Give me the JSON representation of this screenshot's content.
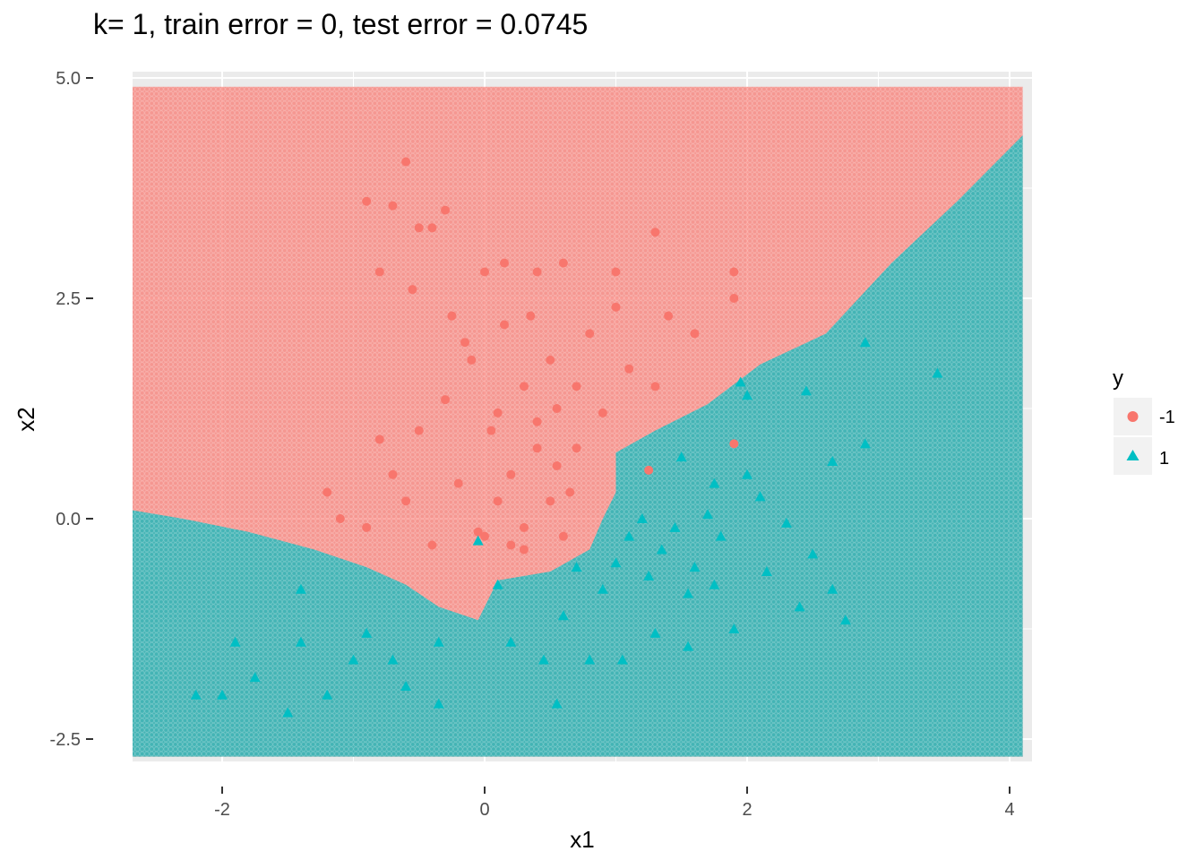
{
  "chart_data": {
    "type": "scatter",
    "title": "k= 1, train error = 0, test error = 0.0745",
    "xlabel": "x1",
    "ylabel": "x2",
    "xlim": [
      -2.75,
      4.1
    ],
    "ylim": [
      -2.75,
      5.0
    ],
    "x_ticks": [
      {
        "value": -2,
        "label": "-2"
      },
      {
        "value": 0,
        "label": "0"
      },
      {
        "value": 2,
        "label": "2"
      },
      {
        "value": 4,
        "label": "4"
      }
    ],
    "y_ticks": [
      {
        "value": -2.5,
        "label": "-2.5"
      },
      {
        "value": 0,
        "label": "0.0"
      },
      {
        "value": 2.5,
        "label": "2.5"
      },
      {
        "value": 5,
        "label": "5.0"
      }
    ],
    "grid": true,
    "legend": {
      "title": "y",
      "placement": "right",
      "entries": [
        {
          "label": "-1",
          "shape": "circle",
          "color": "#F8766D"
        },
        {
          "label": "1",
          "shape": "triangle",
          "color": "#00BFC4"
        }
      ]
    },
    "colors": {
      "class_neg": "#F8766D",
      "class_pos": "#00BFC4",
      "panel_bg": "#EBEBEB",
      "grid": "#FFFFFF"
    },
    "decision_grid": {
      "description": "Background tiles show the k=1 nearest-neighbour predicted class over x1 in [-2.7, 4.1], x2 in [-2.7, 4.9]",
      "x_range": [
        -2.7,
        4.1
      ],
      "y_range": [
        -2.7,
        4.9
      ],
      "boundary_points": [
        [
          -2.7,
          0.1
        ],
        [
          -2.3,
          0.0
        ],
        [
          -1.8,
          -0.15
        ],
        [
          -1.3,
          -0.35
        ],
        [
          -0.9,
          -0.55
        ],
        [
          -0.6,
          -0.75
        ],
        [
          -0.35,
          -1.0
        ],
        [
          -0.05,
          -1.15
        ],
        [
          0.1,
          -0.7
        ],
        [
          0.5,
          -0.6
        ],
        [
          0.8,
          -0.35
        ],
        [
          0.9,
          0.0
        ],
        [
          1.0,
          0.3
        ],
        [
          1.0,
          0.75
        ],
        [
          1.3,
          1.0
        ],
        [
          1.7,
          1.3
        ],
        [
          2.1,
          1.75
        ],
        [
          2.6,
          2.1
        ],
        [
          3.1,
          2.9
        ],
        [
          3.6,
          3.6
        ],
        [
          4.1,
          4.35
        ]
      ]
    },
    "series": [
      {
        "name": "-1",
        "shape": "circle",
        "points": [
          [
            -0.9,
            3.6
          ],
          [
            -0.8,
            2.8
          ],
          [
            -0.7,
            3.55
          ],
          [
            -0.6,
            4.05
          ],
          [
            -0.5,
            3.3
          ],
          [
            -0.4,
            3.3
          ],
          [
            -0.3,
            3.5
          ],
          [
            -0.55,
            2.6
          ],
          [
            -0.25,
            2.3
          ],
          [
            -0.15,
            2.0
          ],
          [
            0.0,
            2.8
          ],
          [
            0.15,
            2.9
          ],
          [
            0.4,
            2.8
          ],
          [
            0.6,
            2.9
          ],
          [
            1.0,
            2.8
          ],
          [
            1.3,
            3.25
          ],
          [
            1.9,
            2.8
          ],
          [
            1.9,
            2.5
          ],
          [
            0.5,
            1.8
          ],
          [
            0.7,
            1.5
          ],
          [
            0.3,
            1.5
          ],
          [
            0.1,
            1.2
          ],
          [
            -0.3,
            1.35
          ],
          [
            -0.5,
            1.0
          ],
          [
            -0.8,
            0.9
          ],
          [
            -1.1,
            0.0
          ],
          [
            -1.2,
            0.3
          ],
          [
            -0.9,
            -0.1
          ],
          [
            0.2,
            0.5
          ],
          [
            0.4,
            0.8
          ],
          [
            0.9,
            1.2
          ],
          [
            1.1,
            1.7
          ],
          [
            1.4,
            2.3
          ],
          [
            1.6,
            2.1
          ],
          [
            -0.2,
            0.4
          ],
          [
            0.0,
            -0.2
          ],
          [
            0.2,
            -0.3
          ],
          [
            0.5,
            0.2
          ],
          [
            0.7,
            0.8
          ],
          [
            -0.4,
            -0.3
          ],
          [
            0.3,
            -0.1
          ],
          [
            0.6,
            -0.2
          ],
          [
            1.25,
            0.55
          ],
          [
            1.9,
            0.85
          ],
          [
            0.8,
            2.1
          ],
          [
            -0.1,
            1.8
          ],
          [
            0.15,
            2.2
          ],
          [
            1.0,
            2.4
          ],
          [
            1.3,
            1.5
          ],
          [
            -0.7,
            0.5
          ],
          [
            0.05,
            1.0
          ],
          [
            0.4,
            1.1
          ],
          [
            0.65,
            0.3
          ],
          [
            0.55,
            1.25
          ],
          [
            0.35,
            2.3
          ],
          [
            0.55,
            0.6
          ],
          [
            0.3,
            -0.35
          ],
          [
            0.1,
            0.2
          ],
          [
            -0.6,
            0.2
          ],
          [
            -0.05,
            -0.15
          ]
        ]
      },
      {
        "name": "1",
        "shape": "triangle",
        "points": [
          [
            -2.2,
            -2.0
          ],
          [
            -2.0,
            -2.0
          ],
          [
            -1.9,
            -1.4
          ],
          [
            -1.75,
            -1.8
          ],
          [
            -1.5,
            -2.2
          ],
          [
            -1.4,
            -1.4
          ],
          [
            -1.2,
            -2.0
          ],
          [
            -1.0,
            -1.6
          ],
          [
            -0.9,
            -1.3
          ],
          [
            -0.7,
            -1.6
          ],
          [
            -0.6,
            -1.9
          ],
          [
            -0.35,
            -2.1
          ],
          [
            -0.35,
            -1.4
          ],
          [
            -1.4,
            -0.8
          ],
          [
            0.2,
            -1.4
          ],
          [
            0.45,
            -1.6
          ],
          [
            0.6,
            -1.1
          ],
          [
            0.8,
            -1.6
          ],
          [
            1.05,
            -1.6
          ],
          [
            1.3,
            -1.3
          ],
          [
            1.55,
            -1.45
          ],
          [
            1.9,
            -1.25
          ],
          [
            2.4,
            -1.0
          ],
          [
            2.75,
            -1.15
          ],
          [
            2.65,
            -0.8
          ],
          [
            2.5,
            -0.4
          ],
          [
            2.3,
            -0.05
          ],
          [
            2.1,
            0.25
          ],
          [
            1.75,
            0.4
          ],
          [
            1.5,
            0.7
          ],
          [
            1.35,
            -0.35
          ],
          [
            1.2,
            0.0
          ],
          [
            1.0,
            -0.5
          ],
          [
            0.9,
            -0.8
          ],
          [
            1.6,
            -0.55
          ],
          [
            1.8,
            -0.2
          ],
          [
            2.0,
            0.5
          ],
          [
            2.45,
            1.45
          ],
          [
            2.9,
            0.85
          ],
          [
            2.9,
            2.0
          ],
          [
            3.45,
            1.65
          ],
          [
            2.65,
            0.65
          ],
          [
            1.95,
            1.55
          ],
          [
            2.0,
            1.4
          ],
          [
            1.7,
            0.05
          ],
          [
            1.55,
            -0.85
          ],
          [
            0.1,
            -0.75
          ],
          [
            -0.05,
            -0.25
          ],
          [
            0.55,
            -2.1
          ],
          [
            1.45,
            -0.1
          ],
          [
            1.1,
            -0.2
          ],
          [
            0.7,
            -0.55
          ],
          [
            1.25,
            -0.65
          ],
          [
            1.75,
            -0.75
          ],
          [
            2.15,
            -0.6
          ]
        ]
      }
    ]
  }
}
